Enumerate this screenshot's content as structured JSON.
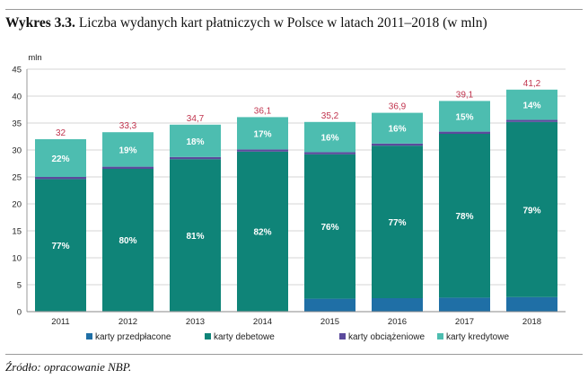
{
  "header": {
    "title_lead": "Wykres 3.3.",
    "title_text": " Liczba wydanych kart płatniczych w Polsce w latach 2011–2018 (w mln)"
  },
  "footer": {
    "source": "Źródło: opracowanie NBP."
  },
  "chart_data": {
    "type": "bar",
    "stacked": true,
    "unit_label": "mln",
    "categories": [
      "2011",
      "2012",
      "2013",
      "2014",
      "2015",
      "2016",
      "2017",
      "2018"
    ],
    "ylim": [
      0,
      45
    ],
    "yticks": [
      0,
      5,
      10,
      15,
      20,
      25,
      30,
      35,
      40,
      45
    ],
    "grid": true,
    "legend_position": "bottom",
    "totals": [
      32,
      33.3,
      34.7,
      36.1,
      35.2,
      36.9,
      39.1,
      41.2
    ],
    "total_labels": [
      "32",
      "33,3",
      "34,7",
      "36,1",
      "35,2",
      "36,9",
      "39,1",
      "41,2"
    ],
    "series": [
      {
        "name": "karty przedpłacone",
        "color": "#1f6fa6",
        "values": [
          0.1,
          0.1,
          0.1,
          0.1,
          2.4,
          2.5,
          2.6,
          2.7
        ],
        "pct_labels": [
          "",
          "",
          "",
          "",
          "",
          "",
          "",
          ""
        ]
      },
      {
        "name": "karty debetowe",
        "color": "#0f8478",
        "values": [
          24.5,
          26.4,
          28.2,
          29.6,
          26.8,
          28.3,
          30.4,
          32.5
        ],
        "pct_labels": [
          "77%",
          "80%",
          "81%",
          "82%",
          "76%",
          "77%",
          "78%",
          "79%"
        ]
      },
      {
        "name": "karty obciążeniowe",
        "color": "#5b4a9c",
        "values": [
          0.4,
          0.4,
          0.4,
          0.4,
          0.4,
          0.4,
          0.4,
          0.4
        ],
        "pct_labels": [
          "",
          "",
          "",
          "",
          "",
          "",
          "",
          ""
        ]
      },
      {
        "name": "karty kredytowe",
        "color": "#4dbdb0",
        "values": [
          7.0,
          6.4,
          6.0,
          6.0,
          5.6,
          5.7,
          5.7,
          5.6
        ],
        "pct_labels": [
          "22%",
          "19%",
          "18%",
          "17%",
          "16%",
          "16%",
          "15%",
          "14%"
        ]
      }
    ]
  }
}
